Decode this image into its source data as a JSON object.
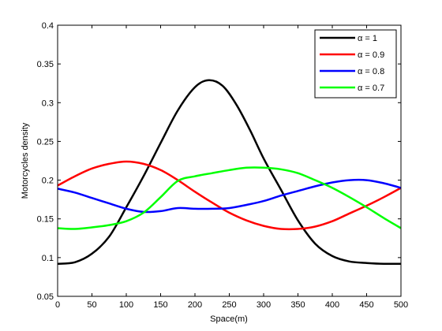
{
  "chart_data": {
    "type": "line",
    "xlabel": "Space(m)",
    "ylabel": "Motorcycles density",
    "xlim": [
      0,
      500
    ],
    "ylim": [
      0.05,
      0.4
    ],
    "xticks": [
      "0",
      "50",
      "100",
      "150",
      "200",
      "250",
      "300",
      "350",
      "400",
      "450",
      "500"
    ],
    "yticks": [
      "0.05",
      "0.1",
      "0.15",
      "0.2",
      "0.25",
      "0.3",
      "0.35",
      "0.4"
    ],
    "grid": false,
    "legend_position": "top-right",
    "series": [
      {
        "name": "α = 1",
        "color": "#000000",
        "points": [
          [
            0,
            0.092
          ],
          [
            25,
            0.094
          ],
          [
            50,
            0.105
          ],
          [
            75,
            0.127
          ],
          [
            100,
            0.165
          ],
          [
            125,
            0.205
          ],
          [
            150,
            0.248
          ],
          [
            175,
            0.29
          ],
          [
            200,
            0.32
          ],
          [
            220,
            0.329
          ],
          [
            240,
            0.322
          ],
          [
            260,
            0.298
          ],
          [
            280,
            0.265
          ],
          [
            300,
            0.228
          ],
          [
            325,
            0.188
          ],
          [
            350,
            0.148
          ],
          [
            375,
            0.118
          ],
          [
            400,
            0.102
          ],
          [
            425,
            0.095
          ],
          [
            450,
            0.093
          ],
          [
            475,
            0.092
          ],
          [
            500,
            0.092
          ]
        ]
      },
      {
        "name": "α = 0.9",
        "color": "#ff0000",
        "points": [
          [
            0,
            0.193
          ],
          [
            25,
            0.205
          ],
          [
            50,
            0.215
          ],
          [
            75,
            0.221
          ],
          [
            100,
            0.224
          ],
          [
            125,
            0.221
          ],
          [
            150,
            0.213
          ],
          [
            175,
            0.2
          ],
          [
            200,
            0.185
          ],
          [
            225,
            0.171
          ],
          [
            250,
            0.158
          ],
          [
            275,
            0.148
          ],
          [
            300,
            0.141
          ],
          [
            325,
            0.137
          ],
          [
            350,
            0.137
          ],
          [
            375,
            0.14
          ],
          [
            400,
            0.147
          ],
          [
            425,
            0.157
          ],
          [
            450,
            0.167
          ],
          [
            475,
            0.178
          ],
          [
            500,
            0.19
          ]
        ]
      },
      {
        "name": "α = 0.8",
        "color": "#0000ff",
        "points": [
          [
            0,
            0.189
          ],
          [
            25,
            0.184
          ],
          [
            50,
            0.177
          ],
          [
            75,
            0.17
          ],
          [
            100,
            0.163
          ],
          [
            125,
            0.159
          ],
          [
            150,
            0.16
          ],
          [
            175,
            0.164
          ],
          [
            200,
            0.163
          ],
          [
            225,
            0.163
          ],
          [
            250,
            0.164
          ],
          [
            275,
            0.168
          ],
          [
            300,
            0.173
          ],
          [
            325,
            0.18
          ],
          [
            350,
            0.186
          ],
          [
            375,
            0.192
          ],
          [
            400,
            0.197
          ],
          [
            425,
            0.2
          ],
          [
            450,
            0.2
          ],
          [
            475,
            0.196
          ],
          [
            500,
            0.19
          ]
        ]
      },
      {
        "name": "α = 0.7",
        "color": "#00ff00",
        "points": [
          [
            0,
            0.138
          ],
          [
            25,
            0.137
          ],
          [
            50,
            0.139
          ],
          [
            75,
            0.142
          ],
          [
            100,
            0.147
          ],
          [
            125,
            0.158
          ],
          [
            150,
            0.178
          ],
          [
            175,
            0.199
          ],
          [
            200,
            0.205
          ],
          [
            225,
            0.209
          ],
          [
            250,
            0.213
          ],
          [
            275,
            0.216
          ],
          [
            300,
            0.216
          ],
          [
            325,
            0.214
          ],
          [
            350,
            0.209
          ],
          [
            375,
            0.2
          ],
          [
            400,
            0.19
          ],
          [
            425,
            0.178
          ],
          [
            450,
            0.165
          ],
          [
            475,
            0.151
          ],
          [
            500,
            0.138
          ]
        ]
      }
    ]
  }
}
